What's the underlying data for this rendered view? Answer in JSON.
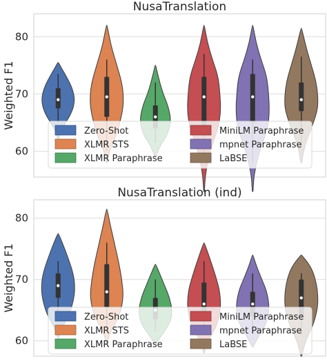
{
  "chart_data": [
    {
      "type": "violin",
      "title": "NusaTranslation",
      "xlabel": "",
      "ylabel": "Weighted F1",
      "ylim": [
        55.5,
        84
      ],
      "yticks": [
        60,
        70,
        80
      ],
      "grid": true,
      "legend_position": "lower-center",
      "series": [
        {
          "name": "Zero-Shot",
          "color": "#4c72b0",
          "min": 62,
          "max": 75.5,
          "q1": 67.5,
          "median": 69,
          "q3": 71,
          "whisker_low": 65,
          "whisker_high": 73.5,
          "width": 0.75,
          "shape": [
            [
              62,
              0.02
            ],
            [
              63.5,
              0.15
            ],
            [
              65,
              0.45
            ],
            [
              67,
              0.85
            ],
            [
              69,
              1.0
            ],
            [
              71,
              0.85
            ],
            [
              73,
              0.5
            ],
            [
              74.5,
              0.2
            ],
            [
              75.5,
              0.02
            ]
          ]
        },
        {
          "name": "XLMR STS",
          "color": "#dd8452",
          "min": 58,
          "max": 82,
          "q1": 66,
          "median": 69.5,
          "q3": 73,
          "whisker_low": 60,
          "whisker_high": 76,
          "width": 0.75,
          "shape": [
            [
              58,
              0.02
            ],
            [
              60,
              0.15
            ],
            [
              63,
              0.6
            ],
            [
              67,
              0.95
            ],
            [
              69.5,
              1.0
            ],
            [
              72,
              0.9
            ],
            [
              75,
              0.6
            ],
            [
              78,
              0.3
            ],
            [
              80,
              0.15
            ],
            [
              82,
              0.02
            ]
          ]
        },
        {
          "name": "XLMR Paraphrase",
          "color": "#55a868",
          "min": 59,
          "max": 75,
          "q1": 64,
          "median": 66,
          "q3": 68,
          "whisker_low": 61.5,
          "whisker_high": 72,
          "width": 0.7,
          "shape": [
            [
              59,
              0.02
            ],
            [
              61,
              0.3
            ],
            [
              63,
              0.8
            ],
            [
              65.5,
              1.0
            ],
            [
              68,
              0.8
            ],
            [
              70,
              0.5
            ],
            [
              72,
              0.28
            ],
            [
              74,
              0.1
            ],
            [
              75,
              0.02
            ]
          ]
        },
        {
          "name": "MiniLM Paraphrase",
          "color": "#c44e52",
          "min": 53,
          "max": 82,
          "q1": 64.5,
          "median": 69.5,
          "q3": 73,
          "whisker_low": 58,
          "whisker_high": 77,
          "width": 0.75,
          "shape": [
            [
              53,
              0.02
            ],
            [
              56,
              0.08
            ],
            [
              60,
              0.35
            ],
            [
              64,
              0.85
            ],
            [
              67,
              1.0
            ],
            [
              70,
              0.95
            ],
            [
              73,
              0.85
            ],
            [
              76,
              0.5
            ],
            [
              79,
              0.2
            ],
            [
              82,
              0.02
            ]
          ]
        },
        {
          "name": "mpnet Paraphrase",
          "color": "#8172b3",
          "min": 53,
          "max": 82,
          "q1": 65,
          "median": 69.5,
          "q3": 73.5,
          "whisker_low": 58,
          "whisker_high": 76,
          "width": 0.75,
          "shape": [
            [
              53,
              0.02
            ],
            [
              56,
              0.08
            ],
            [
              60,
              0.4
            ],
            [
              64,
              0.9
            ],
            [
              67,
              1.0
            ],
            [
              70,
              0.95
            ],
            [
              73,
              0.85
            ],
            [
              76,
              0.5
            ],
            [
              79,
              0.2
            ],
            [
              82,
              0.02
            ]
          ]
        },
        {
          "name": "LaBSE",
          "color": "#937860",
          "min": 58,
          "max": 81.5,
          "q1": 67,
          "median": 69,
          "q3": 72,
          "whisker_low": 61,
          "whisker_high": 76.5,
          "width": 0.75,
          "shape": [
            [
              58,
              0.02
            ],
            [
              61,
              0.2
            ],
            [
              64,
              0.6
            ],
            [
              67,
              0.95
            ],
            [
              69,
              1.0
            ],
            [
              72,
              0.9
            ],
            [
              75,
              0.6
            ],
            [
              78,
              0.3
            ],
            [
              81.5,
              0.02
            ]
          ]
        }
      ]
    },
    {
      "type": "violin",
      "title": "NusaTranslation (ind)",
      "xlabel": "",
      "ylabel": "Weighted F1",
      "ylim": [
        57.5,
        83
      ],
      "yticks": [
        60,
        70,
        80
      ],
      "grid": true,
      "legend_position": "lower-center",
      "series": [
        {
          "name": "Zero-Shot",
          "color": "#4c72b0",
          "min": 60.5,
          "max": 77.5,
          "q1": 67,
          "median": 69,
          "q3": 71,
          "whisker_low": 64,
          "whisker_high": 73,
          "width": 0.75,
          "shape": [
            [
              60.5,
              0.02
            ],
            [
              62,
              0.2
            ],
            [
              64.5,
              0.7
            ],
            [
              67,
              0.95
            ],
            [
              69,
              1.0
            ],
            [
              71,
              0.9
            ],
            [
              73.5,
              0.6
            ],
            [
              76,
              0.25
            ],
            [
              77.5,
              0.02
            ]
          ]
        },
        {
          "name": "XLMR STS",
          "color": "#dd8452",
          "min": 59.5,
          "max": 81.5,
          "q1": 65.5,
          "median": 68,
          "q3": 72.5,
          "whisker_low": 62,
          "whisker_high": 76,
          "width": 0.75,
          "shape": [
            [
              59.5,
              0.02
            ],
            [
              61.5,
              0.2
            ],
            [
              64,
              0.75
            ],
            [
              67,
              1.0
            ],
            [
              70,
              0.9
            ],
            [
              73,
              0.7
            ],
            [
              76,
              0.45
            ],
            [
              79,
              0.2
            ],
            [
              81.5,
              0.02
            ]
          ]
        },
        {
          "name": "XLMR Paraphrase",
          "color": "#55a868",
          "min": 59.5,
          "max": 72.5,
          "q1": 63.5,
          "median": 65,
          "q3": 67,
          "whisker_low": 61.5,
          "whisker_high": 70,
          "width": 0.75,
          "shape": [
            [
              59.5,
              0.02
            ],
            [
              61,
              0.4
            ],
            [
              63,
              0.9
            ],
            [
              65,
              1.0
            ],
            [
              67,
              0.85
            ],
            [
              69,
              0.55
            ],
            [
              71,
              0.25
            ],
            [
              72.5,
              0.02
            ]
          ]
        },
        {
          "name": "MiniLM Paraphrase",
          "color": "#c44e52",
          "min": 58,
          "max": 76,
          "q1": 64,
          "median": 66,
          "q3": 69.5,
          "whisker_low": 61.5,
          "whisker_high": 73,
          "width": 0.75,
          "shape": [
            [
              58,
              0.02
            ],
            [
              60,
              0.2
            ],
            [
              62,
              0.7
            ],
            [
              65,
              1.0
            ],
            [
              68,
              0.95
            ],
            [
              70.5,
              0.7
            ],
            [
              73,
              0.4
            ],
            [
              76,
              0.02
            ]
          ]
        },
        {
          "name": "mpnet Paraphrase",
          "color": "#8172b3",
          "min": 59,
          "max": 74,
          "q1": 64,
          "median": 66,
          "q3": 68,
          "whisker_low": 61.5,
          "whisker_high": 71,
          "width": 0.75,
          "shape": [
            [
              59,
              0.02
            ],
            [
              61,
              0.4
            ],
            [
              63,
              0.85
            ],
            [
              65.5,
              1.0
            ],
            [
              68,
              0.85
            ],
            [
              70,
              0.55
            ],
            [
              72,
              0.25
            ],
            [
              74,
              0.02
            ]
          ]
        },
        {
          "name": "LaBSE",
          "color": "#937860",
          "min": 57.5,
          "max": 74,
          "q1": 64,
          "median": 67,
          "q3": 70,
          "whisker_low": 61,
          "whisker_high": 71,
          "width": 0.75,
          "shape": [
            [
              57.5,
              0.02
            ],
            [
              60,
              0.25
            ],
            [
              62.5,
              0.7
            ],
            [
              65,
              0.95
            ],
            [
              67,
              1.0
            ],
            [
              69.5,
              0.9
            ],
            [
              72,
              0.6
            ],
            [
              74,
              0.02
            ]
          ]
        }
      ]
    }
  ]
}
